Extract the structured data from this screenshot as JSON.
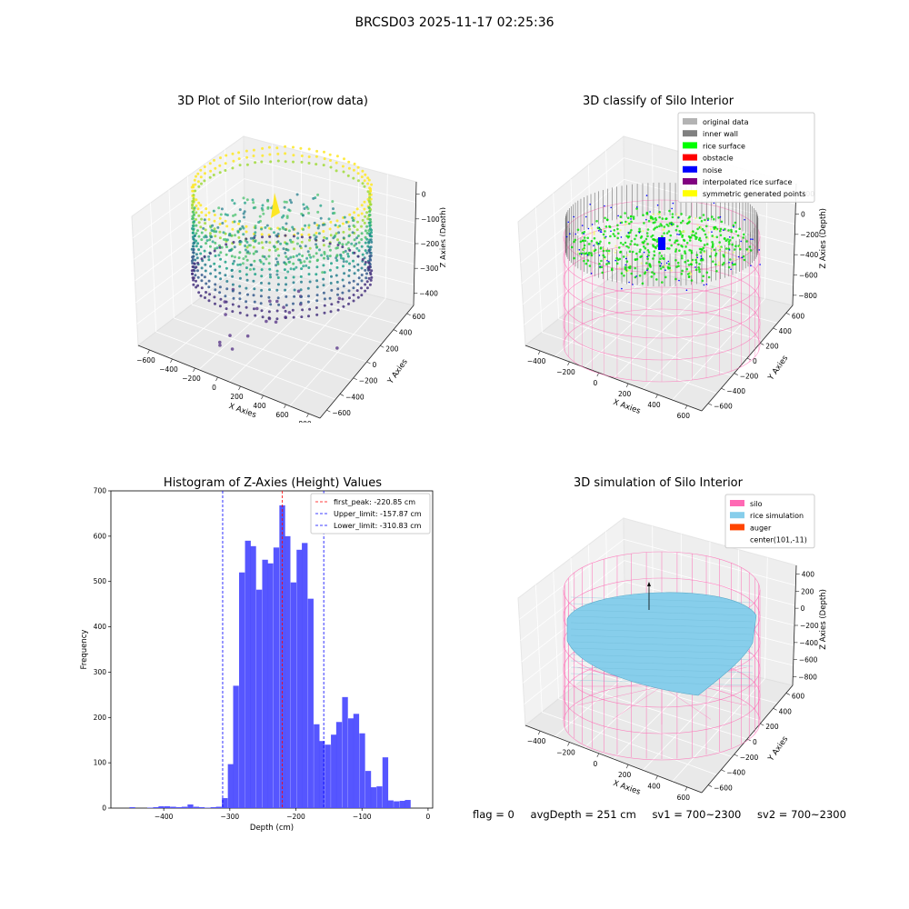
{
  "figure": {
    "suptitle": "BRCSD03 2025-11-17 02:25:36"
  },
  "colors": {
    "original": "#b3b3b3",
    "inner_wall": "#808080",
    "rice_surface": "#00ff00",
    "obstacle": "#ff0000",
    "noise": "#0000ff",
    "interpolated": "#800080",
    "symmetric": "#ffff00",
    "silo": "#ff69b4",
    "rice_sim": "#87ceeb",
    "auger": "#ff4500",
    "hist_bar": "#4d4dff",
    "peak_line": "#ff0000",
    "limit_line": "#0000ff"
  },
  "chart_data": [
    {
      "type": "scatter",
      "dims": "3d",
      "title": "3D Plot of Silo Interior(row data)",
      "xlabel": "X Axies",
      "ylabel": "Y Axies",
      "zlabel": "Z Axies (Depth)",
      "xticks": [
        "−600",
        "−400",
        "−200",
        "0",
        "200",
        "400",
        "600",
        "800"
      ],
      "yticks": [
        "−600",
        "−400",
        "−200",
        "0",
        "200",
        "400",
        "600"
      ],
      "zticks": [
        "0",
        "−100",
        "−200",
        "−300",
        "−400"
      ],
      "colormap": "viridis"
    },
    {
      "type": "scatter",
      "dims": "3d",
      "title": "3D classify of Silo Interior",
      "xlabel": "X Axies",
      "ylabel": "Y Axies",
      "zlabel": "Z Axies (Depth)",
      "xticks": [
        "−400",
        "−200",
        "0",
        "200",
        "400",
        "600"
      ],
      "yticks": [
        "−600",
        "−400",
        "−200",
        "0",
        "200",
        "400",
        "600"
      ],
      "zticks": [
        "200",
        "0",
        "−200",
        "−400",
        "−600",
        "−800"
      ],
      "legend": {
        "placement": "top-right",
        "items": [
          {
            "label": "original data",
            "color": "#b3b3b3"
          },
          {
            "label": "inner wall",
            "color": "#808080"
          },
          {
            "label": "rice surface",
            "color": "#00ff00"
          },
          {
            "label": "obstacle",
            "color": "#ff0000"
          },
          {
            "label": "noise",
            "color": "#0000ff"
          },
          {
            "label": "interpolated rice surface",
            "color": "#800080"
          },
          {
            "label": "symmetric generated points",
            "color": "#ffff00"
          }
        ]
      }
    },
    {
      "type": "bar",
      "title": "Histogram of Z-Axies (Height) Values",
      "xlabel": "Depth (cm)",
      "ylabel": "Frequency",
      "xlim": [
        -480,
        7
      ],
      "ylim": [
        0,
        700
      ],
      "xticks": [
        -400,
        -300,
        -200,
        -100,
        0
      ],
      "xticklabels": [
        "−400",
        "−300",
        "−200",
        "−100",
        "0"
      ],
      "yticks": [
        0,
        100,
        200,
        300,
        400,
        500,
        600,
        700
      ],
      "bin_width": 8.7,
      "bins": [
        [
          -452,
          2
        ],
        [
          -425,
          1
        ],
        [
          -416,
          2
        ],
        [
          -408,
          4
        ],
        [
          -399,
          4
        ],
        [
          -390,
          3
        ],
        [
          -381,
          2
        ],
        [
          -373,
          3
        ],
        [
          -364,
          8
        ],
        [
          -355,
          3
        ],
        [
          -347,
          2
        ],
        [
          -338,
          1
        ],
        [
          -329,
          2
        ],
        [
          -321,
          3
        ],
        [
          -312,
          22
        ],
        [
          -303,
          97
        ],
        [
          -295,
          270
        ],
        [
          -286,
          520
        ],
        [
          -277,
          590
        ],
        [
          -269,
          578
        ],
        [
          -260,
          482
        ],
        [
          -251,
          548
        ],
        [
          -243,
          540
        ],
        [
          -234,
          575
        ],
        [
          -225,
          668
        ],
        [
          -217,
          600
        ],
        [
          -208,
          498
        ],
        [
          -199,
          570
        ],
        [
          -191,
          585
        ],
        [
          -182,
          462
        ],
        [
          -173,
          185
        ],
        [
          -165,
          148
        ],
        [
          -156,
          140
        ],
        [
          -147,
          162
        ],
        [
          -139,
          190
        ],
        [
          -130,
          245
        ],
        [
          -121,
          198
        ],
        [
          -113,
          208
        ],
        [
          -104,
          165
        ],
        [
          -95,
          82
        ],
        [
          -87,
          46
        ],
        [
          -78,
          48
        ],
        [
          -69,
          112
        ],
        [
          -61,
          17
        ],
        [
          -52,
          15
        ],
        [
          -43,
          16
        ],
        [
          -35,
          18
        ]
      ],
      "vlines": [
        {
          "label": "first_peak: -220.85 cm",
          "x": -220.85,
          "color": "#ff0000"
        },
        {
          "label": "Upper_limit: -157.87 cm",
          "x": -157.87,
          "color": "#0000ff"
        },
        {
          "label": "Lower_limit: -310.83 cm",
          "x": -310.83,
          "color": "#0000ff"
        }
      ],
      "legend_placement": "top-right"
    },
    {
      "type": "area",
      "dims": "3d",
      "title": "3D simulation of Silo Interior",
      "xlabel": "X Axies",
      "ylabel": "Y Axies",
      "zlabel": "Z Axies (Depth)",
      "xticks": [
        "−400",
        "−200",
        "0",
        "200",
        "400",
        "600"
      ],
      "yticks": [
        "−600",
        "−400",
        "−200",
        "0",
        "200",
        "400",
        "600"
      ],
      "zticks": [
        "400",
        "200",
        "0",
        "−200",
        "−400",
        "−600",
        "−800"
      ],
      "legend": {
        "placement": "top-right",
        "items": [
          {
            "label": "silo",
            "color": "#ff69b4"
          },
          {
            "label": "rice simulation",
            "color": "#87ceeb"
          },
          {
            "label": "auger",
            "color": "#ff4500"
          },
          {
            "label": "center(101,-11)",
            "color": ""
          }
        ]
      }
    }
  ],
  "stats": {
    "flag": "flag = 0",
    "avg_depth": "avgDepth = 251 cm",
    "sv1": "sv1 = 700~2300",
    "sv2": "sv2 = 700~2300"
  }
}
